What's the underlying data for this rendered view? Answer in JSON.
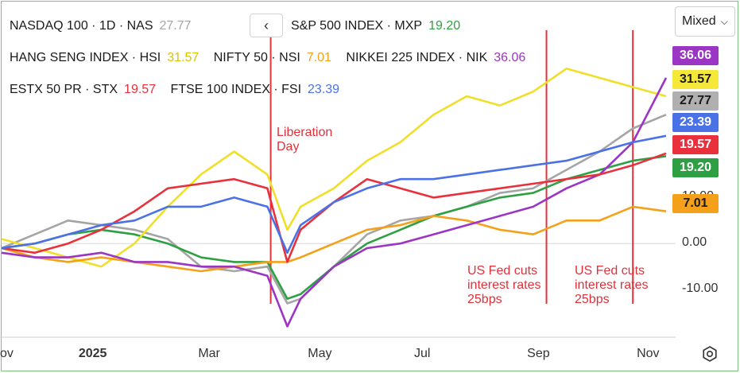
{
  "toolbar": {
    "mode_label": "Mixed"
  },
  "legend": [
    {
      "label": "NASDAQ 100 · 1D · NAS",
      "value": "27.77",
      "color": "#a5a5a5"
    },
    {
      "label": "S&P 500 INDEX · MXP",
      "value": "19.20",
      "color": "#2ea043"
    },
    {
      "label": "HANG SENG INDEX · HSI",
      "value": "31.57",
      "color": "#f0df2a"
    },
    {
      "label": "NIFTY 50 · NSI",
      "value": "7.01",
      "color": "#f5a01a"
    },
    {
      "label": "NIKKEI 225 INDEX · NIK",
      "value": "36.06",
      "color": "#9b35c4"
    },
    {
      "label": "ESTX 50 PR · STX",
      "value": "19.57",
      "color": "#e8313c"
    },
    {
      "label": "FTSE 100 INDEX · FSI",
      "value": "23.39",
      "color": "#4b71e6"
    }
  ],
  "price_tags": [
    {
      "value": "36.06",
      "bg": "#9b35c4",
      "fg": "#ffffff"
    },
    {
      "value": "31.57",
      "bg": "#f5e83a",
      "fg": "#1a1a1a"
    },
    {
      "value": "27.77",
      "bg": "#b0b0b0",
      "fg": "#1a1a1a"
    },
    {
      "value": "23.39",
      "bg": "#4b71e6",
      "fg": "#ffffff"
    },
    {
      "value": "19.57",
      "bg": "#e8313c",
      "fg": "#ffffff"
    },
    {
      "value": "19.20",
      "bg": "#2ea043",
      "fg": "#ffffff"
    },
    {
      "value": "7.01",
      "bg": "#f5a01a",
      "fg": "#1a1a1a"
    }
  ],
  "annotations": {
    "liberation": "Liberation\nDay",
    "fed1": "US Fed cuts\ninterest rates\n25bps",
    "fed2": "US Fed cuts\ninterest rates\n25bps"
  },
  "chart_data": {
    "type": "line",
    "x_labels": [
      "ov",
      "2025",
      "Mar",
      "May",
      "Jul",
      "Sep",
      "Nov"
    ],
    "y_ticks": [
      "10.00",
      "0.00",
      "-10.00"
    ],
    "ylim": [
      -20,
      46
    ],
    "grid": false,
    "series": [
      {
        "name": "NASDAQ 100 · 1D · NAS",
        "color": "#a5a5a5",
        "x": [
          0,
          5,
          10,
          15,
          20,
          25,
          30,
          35,
          40,
          43,
          45,
          50,
          55,
          60,
          65,
          70,
          75,
          80,
          85,
          90,
          95,
          100
        ],
        "y": [
          -1,
          2,
          5,
          4,
          3,
          1,
          -5,
          -6,
          -5,
          -13,
          -12,
          -5,
          2,
          5,
          6,
          8,
          11,
          12,
          16,
          20,
          25,
          28
        ]
      },
      {
        "name": "S&P 500 INDEX · MXP",
        "color": "#2ea043",
        "x": [
          0,
          5,
          10,
          15,
          20,
          25,
          30,
          35,
          40,
          43,
          45,
          50,
          55,
          60,
          65,
          70,
          75,
          80,
          85,
          90,
          95,
          100
        ],
        "y": [
          -1,
          0,
          2,
          3,
          2,
          0,
          -3,
          -4,
          -4,
          -12,
          -11,
          -5,
          0,
          3,
          6,
          8,
          10,
          11,
          14,
          16,
          18,
          19
        ]
      },
      {
        "name": "HANG SENG INDEX · HSI",
        "color": "#f0df2a",
        "x": [
          0,
          5,
          10,
          15,
          20,
          25,
          30,
          35,
          40,
          43,
          45,
          50,
          55,
          60,
          65,
          70,
          75,
          80,
          85,
          90,
          95,
          100
        ],
        "y": [
          1,
          -1,
          -3,
          -5,
          0,
          8,
          15,
          20,
          15,
          3,
          8,
          12,
          18,
          22,
          28,
          32,
          30,
          33,
          38,
          36,
          34,
          32
        ]
      },
      {
        "name": "NIFTY 50 · NSI",
        "color": "#f5a01a",
        "x": [
          0,
          5,
          10,
          15,
          20,
          25,
          30,
          35,
          40,
          43,
          45,
          50,
          55,
          60,
          65,
          70,
          75,
          80,
          85,
          90,
          95,
          100
        ],
        "y": [
          -1,
          -3,
          -4,
          -3,
          -4,
          -5,
          -6,
          -5,
          -4,
          -4,
          -3,
          0,
          3,
          4,
          6,
          5,
          3,
          2,
          5,
          5,
          8,
          7
        ]
      },
      {
        "name": "NIKKEI 225 INDEX · NIK",
        "color": "#9b35c4",
        "x": [
          0,
          5,
          10,
          15,
          20,
          25,
          30,
          35,
          40,
          43,
          45,
          50,
          55,
          60,
          65,
          70,
          75,
          80,
          85,
          90,
          95,
          100
        ],
        "y": [
          -2,
          -3,
          -3,
          -2,
          -4,
          -4,
          -5,
          -5,
          -7,
          -18,
          -12,
          -5,
          -1,
          0,
          2,
          4,
          6,
          8,
          12,
          15,
          22,
          36
        ]
      },
      {
        "name": "ESTX 50 PR · STX",
        "color": "#e8313c",
        "x": [
          0,
          5,
          10,
          15,
          20,
          25,
          30,
          35,
          40,
          43,
          45,
          50,
          55,
          60,
          65,
          70,
          75,
          80,
          85,
          90,
          95,
          100
        ],
        "y": [
          -1,
          -2,
          0,
          3,
          7,
          12,
          13,
          14,
          12,
          -4,
          3,
          9,
          14,
          12,
          10,
          11,
          12,
          13,
          14,
          15,
          17,
          19.6
        ]
      },
      {
        "name": "FTSE 100 INDEX · FSI",
        "color": "#4b71e6",
        "x": [
          0,
          5,
          10,
          15,
          20,
          25,
          30,
          35,
          40,
          43,
          45,
          50,
          55,
          60,
          65,
          70,
          75,
          80,
          85,
          90,
          95,
          100
        ],
        "y": [
          -1,
          0,
          2,
          4,
          5,
          8,
          8,
          10,
          8,
          -2,
          4,
          9,
          12,
          14,
          14,
          15,
          16,
          17,
          18,
          20,
          22,
          23.4
        ]
      }
    ],
    "events": [
      {
        "x": 40.5,
        "color": "#e8313c"
      },
      {
        "x": 82,
        "color": "#e8313c"
      },
      {
        "x": 95,
        "color": "#e8313c"
      }
    ]
  }
}
